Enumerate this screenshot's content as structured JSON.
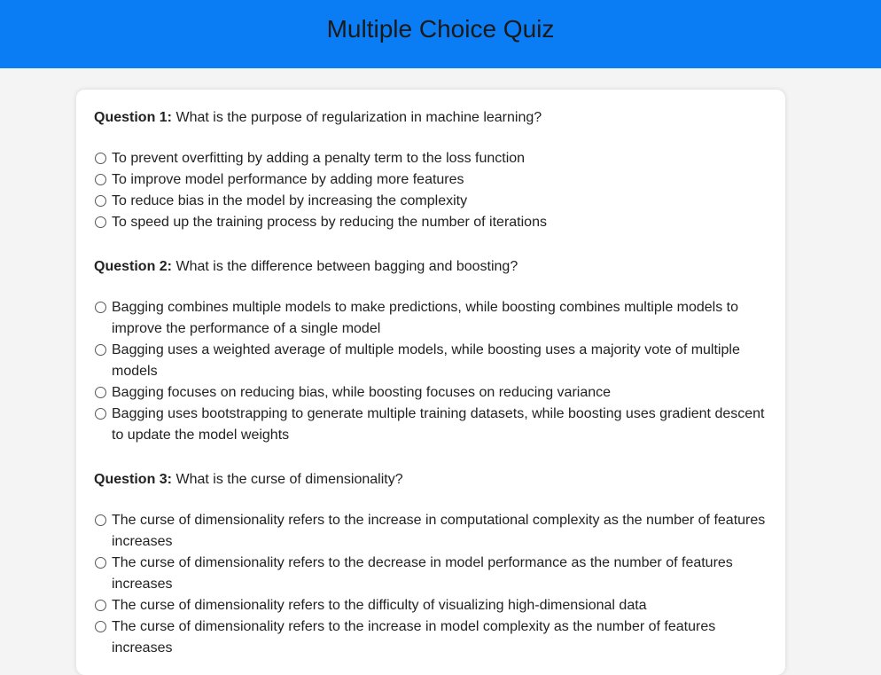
{
  "header": {
    "title": "Multiple Choice Quiz"
  },
  "questions": [
    {
      "label": "Question 1:",
      "text": "What is the purpose of regularization in machine learning?",
      "options": [
        "To prevent overfitting by adding a penalty term to the loss function",
        "To improve model performance by adding more features",
        "To reduce bias in the model by increasing the complexity",
        "To speed up the training process by reducing the number of iterations"
      ]
    },
    {
      "label": "Question 2:",
      "text": "What is the difference between bagging and boosting?",
      "options": [
        "Bagging combines multiple models to make predictions, while boosting combines multiple models to improve the performance of a single model",
        "Bagging uses a weighted average of multiple models, while boosting uses a majority vote of multiple models",
        "Bagging focuses on reducing bias, while boosting focuses on reducing variance",
        "Bagging uses bootstrapping to generate multiple training datasets, while boosting uses gradient descent to update the model weights"
      ]
    },
    {
      "label": "Question 3:",
      "text": "What is the curse of dimensionality?",
      "options": [
        "The curse of dimensionality refers to the increase in computational complexity as the number of features increases",
        "The curse of dimensionality refers to the decrease in model performance as the number of features increases",
        "The curse of dimensionality refers to the difficulty of visualizing high-dimensional data",
        "The curse of dimensionality refers to the increase in model complexity as the number of features increases"
      ]
    }
  ]
}
